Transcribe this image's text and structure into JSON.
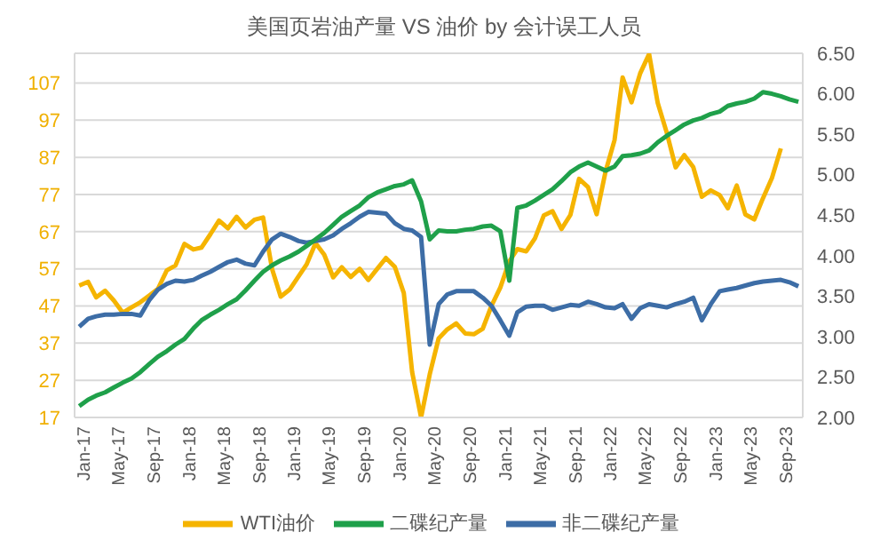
{
  "chart_data": {
    "type": "line",
    "title": "美国页岩油产量 VS 油价 by 会计误工人员",
    "x": [
      "2017-01",
      "2017-02",
      "2017-03",
      "2017-04",
      "2017-05",
      "2017-06",
      "2017-07",
      "2017-08",
      "2017-09",
      "2017-10",
      "2017-11",
      "2017-12",
      "2018-01",
      "2018-02",
      "2018-03",
      "2018-04",
      "2018-05",
      "2018-06",
      "2018-07",
      "2018-08",
      "2018-09",
      "2018-10",
      "2018-11",
      "2018-12",
      "2019-01",
      "2019-02",
      "2019-03",
      "2019-04",
      "2019-05",
      "2019-06",
      "2019-07",
      "2019-08",
      "2019-09",
      "2019-10",
      "2019-11",
      "2019-12",
      "2020-01",
      "2020-02",
      "2020-03",
      "2020-04",
      "2020-05",
      "2020-06",
      "2020-07",
      "2020-08",
      "2020-09",
      "2020-10",
      "2020-11",
      "2020-12",
      "2021-01",
      "2021-02",
      "2021-03",
      "2021-04",
      "2021-05",
      "2021-06",
      "2021-07",
      "2021-08",
      "2021-09",
      "2021-10",
      "2021-11",
      "2021-12",
      "2022-01",
      "2022-02",
      "2022-03",
      "2022-04",
      "2022-05",
      "2022-06",
      "2022-07",
      "2022-08",
      "2022-09",
      "2022-10",
      "2022-11",
      "2022-12",
      "2023-01",
      "2023-02",
      "2023-03",
      "2023-04",
      "2023-05",
      "2023-06",
      "2023-07",
      "2023-08",
      "2023-09",
      "2023-10",
      "2023-11"
    ],
    "xlim": [
      "2016-12-16",
      "2023-11-16"
    ],
    "xticks": [
      {
        "value": "2017-01",
        "label": "Jan-17"
      },
      {
        "value": "2017-05",
        "label": "May-17"
      },
      {
        "value": "2017-09",
        "label": "Sep-17"
      },
      {
        "value": "2018-01",
        "label": "Jan-18"
      },
      {
        "value": "2018-05",
        "label": "May-18"
      },
      {
        "value": "2018-09",
        "label": "Sep-18"
      },
      {
        "value": "2019-01",
        "label": "Jan-19"
      },
      {
        "value": "2019-05",
        "label": "May-19"
      },
      {
        "value": "2019-09",
        "label": "Sep-19"
      },
      {
        "value": "2020-01",
        "label": "Jan-20"
      },
      {
        "value": "2020-05",
        "label": "May-20"
      },
      {
        "value": "2020-09",
        "label": "Sep-20"
      },
      {
        "value": "2021-01",
        "label": "Jan-21"
      },
      {
        "value": "2021-05",
        "label": "May-21"
      },
      {
        "value": "2021-09",
        "label": "Sep-21"
      },
      {
        "value": "2022-01",
        "label": "Jan-22"
      },
      {
        "value": "2022-05",
        "label": "May-22"
      },
      {
        "value": "2022-09",
        "label": "Sep-22"
      },
      {
        "value": "2023-01",
        "label": "Jan-23"
      },
      {
        "value": "2023-05",
        "label": "May-23"
      },
      {
        "value": "2023-09",
        "label": "Sep-23"
      }
    ],
    "series": [
      {
        "name": "WTI油价",
        "color": "#f5b400",
        "axis": "y",
        "values": [
          52.5,
          53.5,
          49.3,
          51.1,
          48.5,
          45.2,
          46.6,
          48.0,
          49.8,
          51.6,
          56.6,
          57.9,
          63.7,
          62.2,
          62.7,
          66.3,
          70.0,
          67.9,
          71.0,
          68.1,
          70.2,
          70.8,
          57.0,
          49.5,
          51.4,
          55.0,
          58.2,
          63.9,
          60.8,
          54.7,
          57.4,
          54.8,
          57.0,
          54.0,
          57.0,
          59.9,
          57.5,
          50.5,
          29.2,
          17,
          28.6,
          38.3,
          40.7,
          42.3,
          39.6,
          39.4,
          40.9,
          47.0,
          52.0,
          59.0,
          62.3,
          61.7,
          65.2,
          71.4,
          72.5,
          67.7,
          71.5,
          81.2,
          79.0,
          71.7,
          83.2,
          91.6,
          108.5,
          101.8,
          109.6,
          114.8,
          101.6,
          93.7,
          84.3,
          87.6,
          84.4,
          76.4,
          78.1,
          76.8,
          73.3,
          79.4,
          71.6,
          70.3,
          76.0,
          81.4,
          89.4,
          null,
          null
        ]
      },
      {
        "name": "非二碟纪产量",
        "color": "#3d6da6",
        "axis": "y2",
        "values": [
          3.12,
          3.22,
          3.25,
          3.27,
          3.27,
          3.28,
          3.28,
          3.26,
          3.45,
          3.58,
          3.65,
          3.69,
          3.68,
          3.7,
          3.75,
          3.8,
          3.86,
          3.92,
          3.95,
          3.9,
          3.88,
          4.05,
          4.2,
          4.27,
          4.23,
          4.18,
          4.16,
          4.18,
          4.2,
          4.25,
          4.33,
          4.4,
          4.48,
          4.54,
          4.53,
          4.52,
          4.4,
          4.33,
          4.31,
          4.23,
          2.9,
          3.4,
          3.52,
          3.56,
          3.56,
          3.56,
          3.48,
          3.38,
          3.2,
          3.01,
          3.3,
          3.37,
          3.38,
          3.38,
          3.33,
          3.36,
          3.39,
          3.38,
          3.43,
          3.4,
          3.36,
          3.35,
          3.4,
          3.22,
          3.35,
          3.4,
          3.38,
          3.36,
          3.4,
          3.43,
          3.48,
          3.2,
          3.4,
          3.56,
          3.58,
          3.6,
          3.63,
          3.66,
          3.68,
          3.69,
          3.7,
          3.67,
          3.62
        ]
      },
      {
        "name": "二碟纪产量",
        "color": "#1fa04a",
        "axis": "y2",
        "values": [
          2.14,
          2.22,
          2.27,
          2.31,
          2.37,
          2.43,
          2.48,
          2.56,
          2.66,
          2.75,
          2.82,
          2.9,
          2.97,
          3.1,
          3.2,
          3.27,
          3.33,
          3.4,
          3.46,
          3.57,
          3.69,
          3.8,
          3.88,
          3.94,
          3.99,
          4.05,
          4.12,
          4.2,
          4.28,
          4.38,
          4.48,
          4.55,
          4.62,
          4.72,
          4.78,
          4.82,
          4.86,
          4.88,
          4.93,
          4.67,
          4.2,
          4.31,
          4.3,
          4.3,
          4.32,
          4.33,
          4.36,
          4.37,
          4.3,
          3.69,
          4.59,
          4.62,
          4.68,
          4.75,
          4.82,
          4.92,
          5.03,
          5.1,
          5.15,
          5.1,
          5.05,
          5.1,
          5.23,
          5.24,
          5.26,
          5.3,
          5.4,
          5.48,
          5.55,
          5.62,
          5.67,
          5.7,
          5.75,
          5.78,
          5.85,
          5.88,
          5.9,
          5.94,
          6.02,
          6.0,
          5.97,
          5.93,
          5.9
        ]
      }
    ],
    "ylim": [
      17,
      115
    ],
    "yticks": [
      17,
      27,
      37,
      47,
      57,
      67,
      77,
      87,
      97,
      107
    ],
    "y2lim": [
      2,
      6.5
    ],
    "y2ticks": [
      {
        "value": 2,
        "label": "2.00"
      },
      {
        "value": 2.5,
        "label": "2.50"
      },
      {
        "value": 3,
        "label": "3.00"
      },
      {
        "value": 3.5,
        "label": "3.50"
      },
      {
        "value": 4,
        "label": "4.00"
      },
      {
        "value": 4.5,
        "label": "4.50"
      },
      {
        "value": 5,
        "label": "5.00"
      },
      {
        "value": 5.5,
        "label": "5.50"
      },
      {
        "value": 6,
        "label": "6.00"
      },
      {
        "value": 6.5,
        "label": "6.50"
      }
    ],
    "grid": "y",
    "legend": "bottom",
    "marker": "none",
    "line_style": "solid"
  }
}
